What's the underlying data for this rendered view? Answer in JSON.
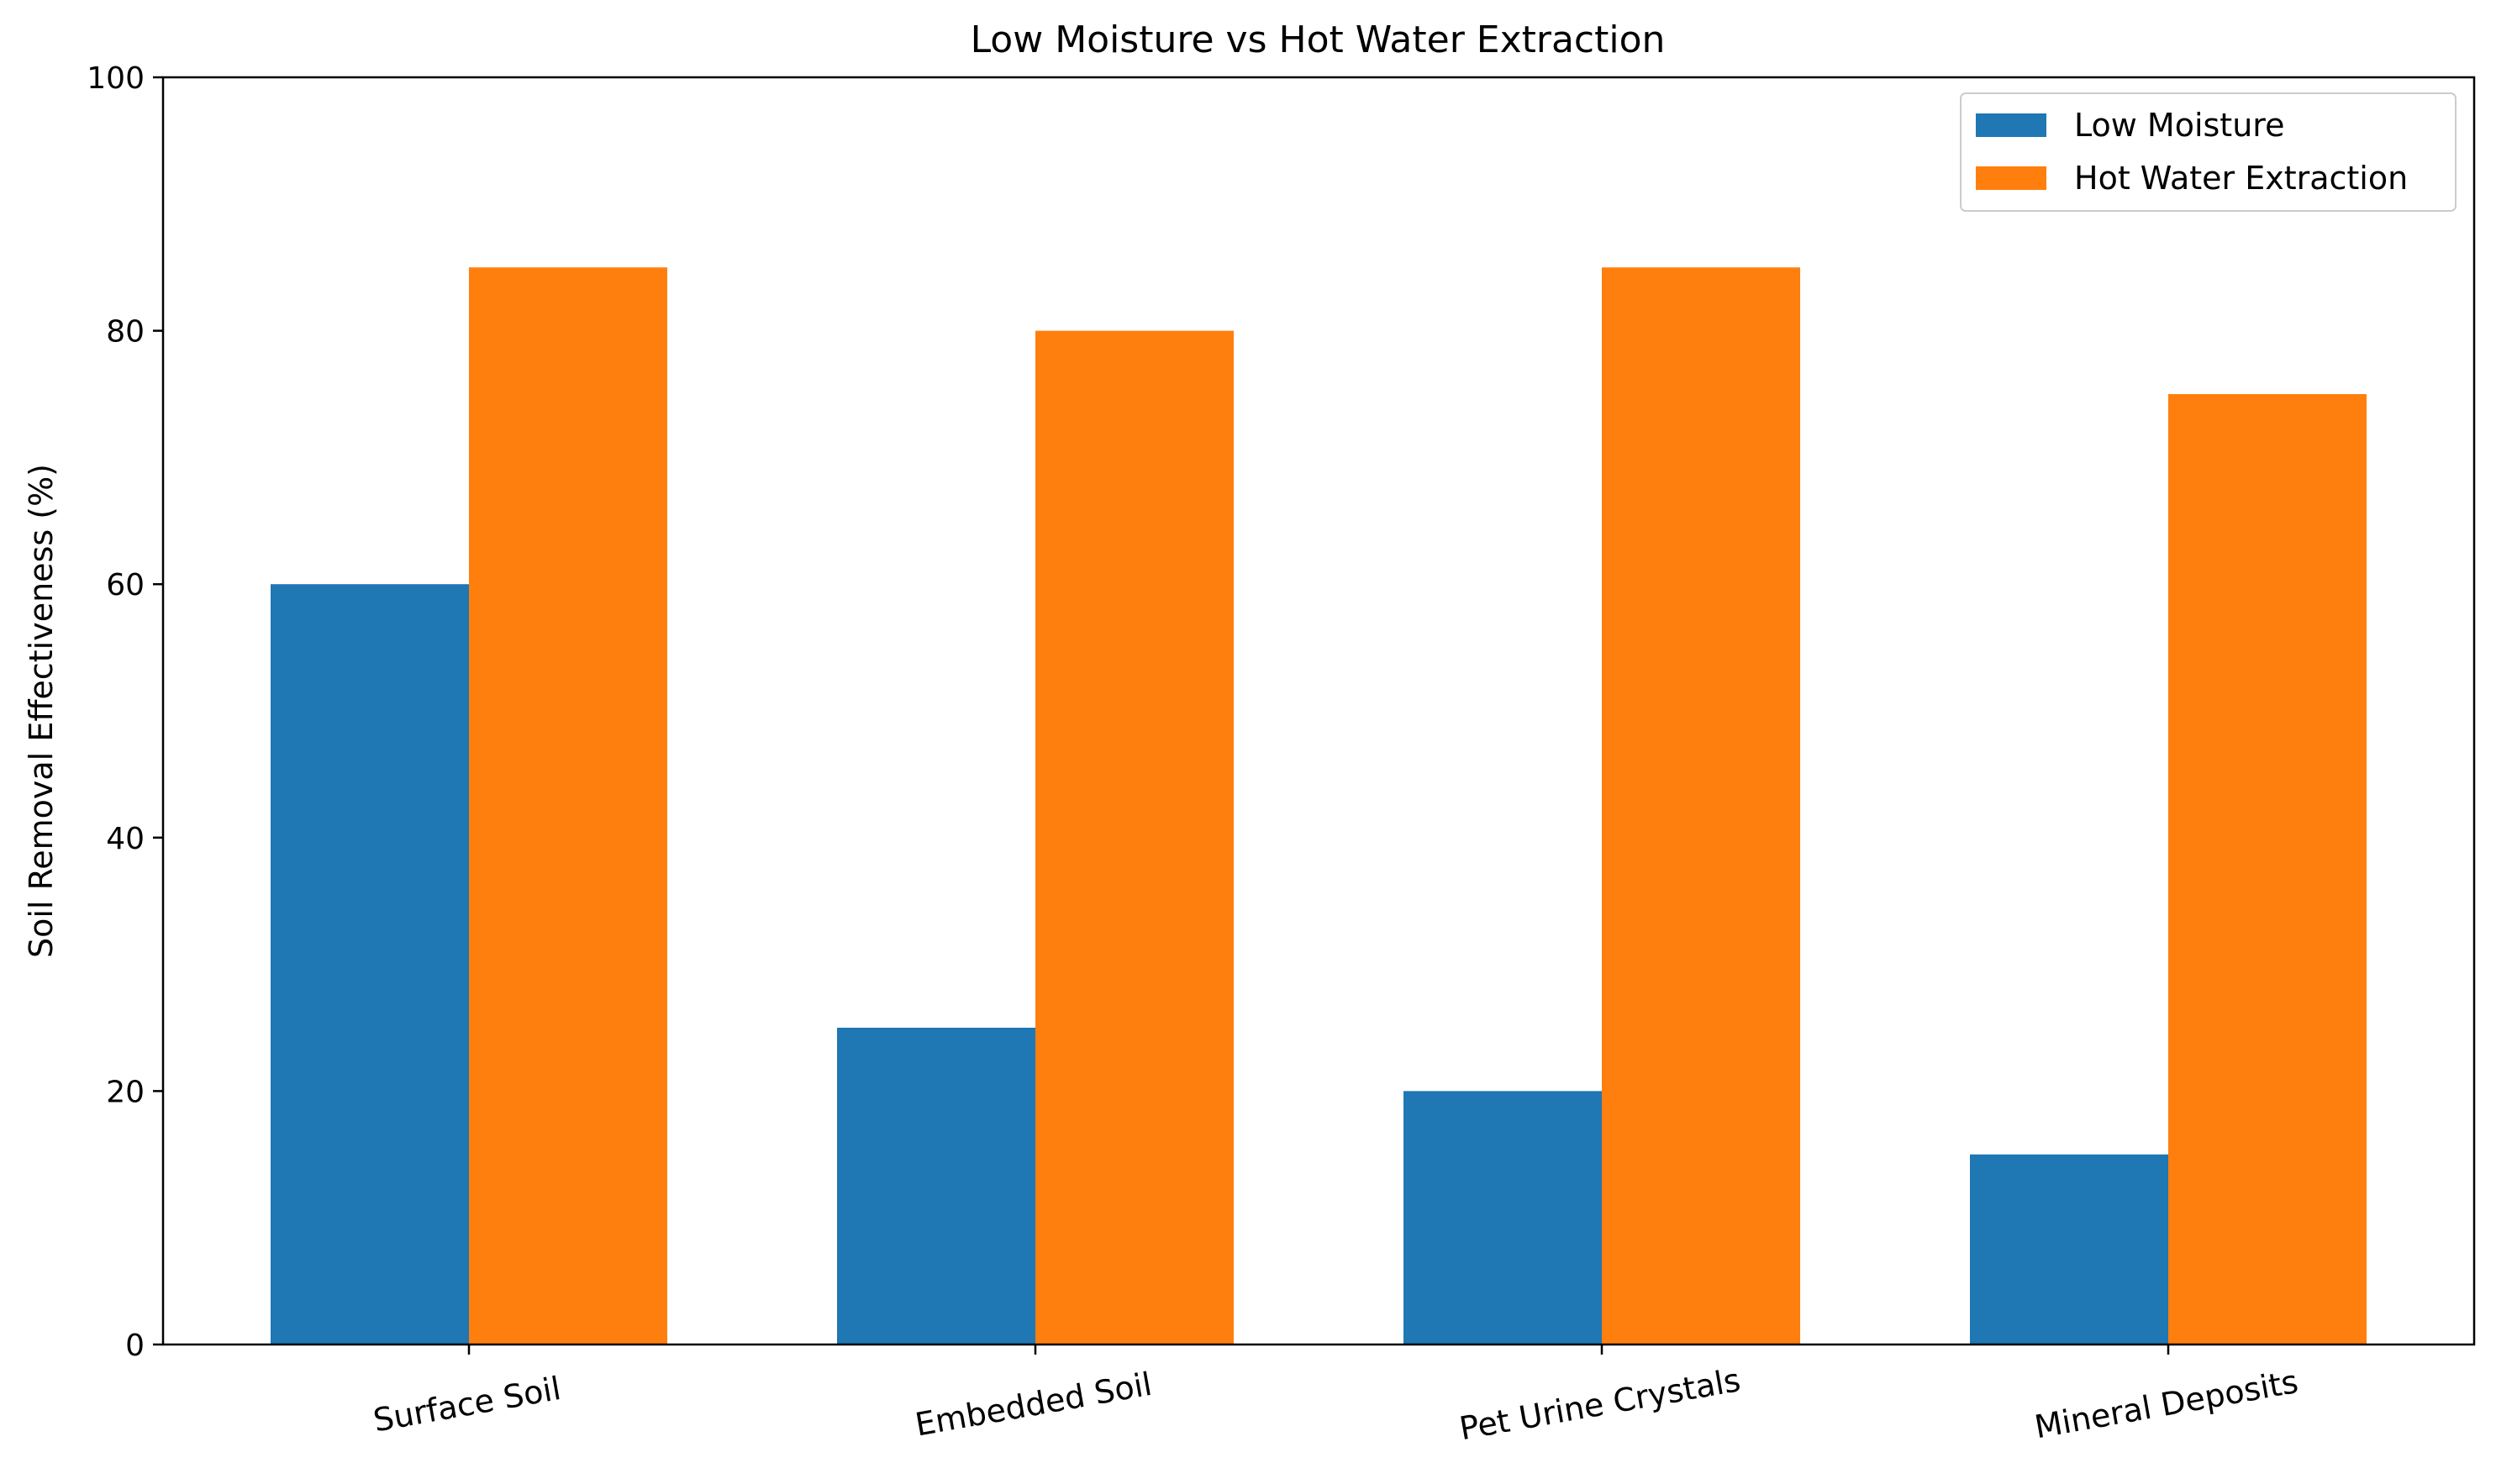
{
  "chart_data": {
    "type": "bar",
    "title": "Low Moisture vs Hot Water Extraction",
    "xlabel": "",
    "ylabel": "Soil Removal Effectiveness (%)",
    "categories": [
      "Surface Soil",
      "Embedded Soil",
      "Pet Urine Crystals",
      "Mineral Deposits"
    ],
    "series": [
      {
        "name": "Low Moisture",
        "values": [
          60,
          25,
          20,
          15
        ],
        "color": "#1f77b4"
      },
      {
        "name": "Hot Water Extraction",
        "values": [
          85,
          80,
          85,
          75
        ],
        "color": "#ff7f0e"
      }
    ],
    "ylim": [
      0,
      100
    ],
    "yticks": [
      0,
      20,
      40,
      60,
      80,
      100
    ],
    "grid": false,
    "legend_position": "top-right",
    "xtick_rotation_deg": 10
  }
}
